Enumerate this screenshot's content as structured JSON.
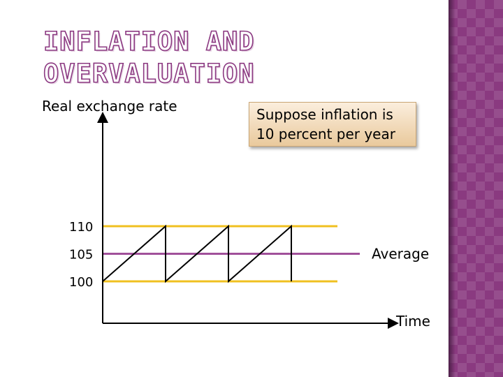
{
  "title": {
    "line1": "INFLATION AND",
    "line2": "OVERVALUATION"
  },
  "y_axis_label": "Real exchange rate",
  "x_axis_label": "Time",
  "callout": {
    "line1": "Suppose inflation is",
    "line2": "10 percent per year"
  },
  "levels": [
    {
      "value": 110,
      "label": "110",
      "color": "#f0c020"
    },
    {
      "value": 105,
      "label": "105",
      "color": "#a0509a"
    },
    {
      "value": 100,
      "label": "100",
      "color": "#f0c020"
    }
  ],
  "average_label": "Average",
  "sawtooth": {
    "low": 100,
    "high": 110,
    "cycles": 3,
    "line_color": "#000000"
  },
  "colors": {
    "accent": "#8c3a82",
    "side_band": "#8a3a80",
    "bound_line": "#f0c020",
    "average_line": "#a0509a"
  }
}
